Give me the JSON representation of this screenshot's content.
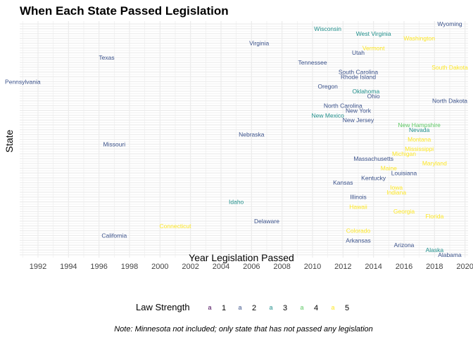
{
  "colors": {
    "1": "#440154",
    "2": "#3b528b",
    "3": "#21908c",
    "4": "#5dc863",
    "5": "#fde725",
    "grid": "#ebebeb"
  },
  "chart_data": {
    "type": "scatter",
    "title": "When Each State Passed Legislation",
    "xlabel": "Year Legislation Passed",
    "ylabel": "State",
    "xlim": [
      1990.8,
      2020.2
    ],
    "xticks": [
      "1992",
      "1994",
      "1996",
      "1998",
      "2000",
      "2002",
      "2004",
      "2006",
      "2008",
      "2010",
      "2012",
      "2014",
      "2016",
      "2018",
      "2020"
    ],
    "grid": true,
    "legend": {
      "title": "Law Strength",
      "position": "bottom",
      "key_glyph": "a",
      "levels": [
        "1",
        "2",
        "3",
        "4",
        "5"
      ]
    },
    "caption": "Note: Minnesota not included; only state that has not passed any legislation",
    "points": [
      {
        "state": "Wyoming",
        "year": 2019.0,
        "strength": 2
      },
      {
        "state": "Wisconsin",
        "year": 2011.0,
        "strength": 3
      },
      {
        "state": "West Virginia",
        "year": 2014.0,
        "strength": 3
      },
      {
        "state": "Washington",
        "year": 2017.0,
        "strength": 5
      },
      {
        "state": "Virginia",
        "year": 2006.5,
        "strength": 2
      },
      {
        "state": "Vermont",
        "year": 2014.0,
        "strength": 5
      },
      {
        "state": "Utah",
        "year": 2013.0,
        "strength": 2
      },
      {
        "state": "Texas",
        "year": 1996.5,
        "strength": 2
      },
      {
        "state": "Tennessee",
        "year": 2010.0,
        "strength": 2
      },
      {
        "state": "South Dakota",
        "year": 2019.0,
        "strength": 5
      },
      {
        "state": "South Carolina",
        "year": 2013.0,
        "strength": 2
      },
      {
        "state": "Rhode Island",
        "year": 2013.0,
        "strength": 2
      },
      {
        "state": "Pennsylvania",
        "year": 1991.0,
        "strength": 2
      },
      {
        "state": "Oregon",
        "year": 2011.0,
        "strength": 2
      },
      {
        "state": "Oklahoma",
        "year": 2013.5,
        "strength": 3
      },
      {
        "state": "Ohio",
        "year": 2014.0,
        "strength": 2
      },
      {
        "state": "North Dakota",
        "year": 2019.0,
        "strength": 2
      },
      {
        "state": "North Carolina",
        "year": 2012.0,
        "strength": 2
      },
      {
        "state": "New York",
        "year": 2013.0,
        "strength": 2
      },
      {
        "state": "New Mexico",
        "year": 2011.0,
        "strength": 3
      },
      {
        "state": "New Jersey",
        "year": 2013.0,
        "strength": 2
      },
      {
        "state": "New Hampshire",
        "year": 2017.0,
        "strength": 4
      },
      {
        "state": "Nevada",
        "year": 2017.0,
        "strength": 3
      },
      {
        "state": "Nebraska",
        "year": 2006.0,
        "strength": 2
      },
      {
        "state": "Montana",
        "year": 2017.0,
        "strength": 5
      },
      {
        "state": "Missouri",
        "year": 1997.0,
        "strength": 2
      },
      {
        "state": "Mississippi",
        "year": 2017.0,
        "strength": 5
      },
      {
        "state": "Michigan",
        "year": 2016.0,
        "strength": 5
      },
      {
        "state": "Massachusetts",
        "year": 2014.0,
        "strength": 2
      },
      {
        "state": "Maryland",
        "year": 2018.0,
        "strength": 5
      },
      {
        "state": "Maine",
        "year": 2015.0,
        "strength": 5
      },
      {
        "state": "Louisiana",
        "year": 2016.0,
        "strength": 2
      },
      {
        "state": "Kentucky",
        "year": 2014.0,
        "strength": 2
      },
      {
        "state": "Kansas",
        "year": 2012.0,
        "strength": 2
      },
      {
        "state": "Iowa",
        "year": 2015.5,
        "strength": 5
      },
      {
        "state": "Indiana",
        "year": 2015.5,
        "strength": 5
      },
      {
        "state": "Illinois",
        "year": 2013.0,
        "strength": 2
      },
      {
        "state": "Idaho",
        "year": 2005.0,
        "strength": 3
      },
      {
        "state": "Hawaii",
        "year": 2013.0,
        "strength": 5
      },
      {
        "state": "Georgia",
        "year": 2016.0,
        "strength": 5
      },
      {
        "state": "Florida",
        "year": 2018.0,
        "strength": 5
      },
      {
        "state": "Delaware",
        "year": 2007.0,
        "strength": 2
      },
      {
        "state": "Connecticut",
        "year": 2001.0,
        "strength": 5
      },
      {
        "state": "Colorado",
        "year": 2013.0,
        "strength": 5
      },
      {
        "state": "California",
        "year": 1997.0,
        "strength": 2
      },
      {
        "state": "Arkansas",
        "year": 2013.0,
        "strength": 2
      },
      {
        "state": "Arizona",
        "year": 2016.0,
        "strength": 2
      },
      {
        "state": "Alaska",
        "year": 2018.0,
        "strength": 3
      },
      {
        "state": "Alabama",
        "year": 2019.0,
        "strength": 2
      }
    ]
  }
}
